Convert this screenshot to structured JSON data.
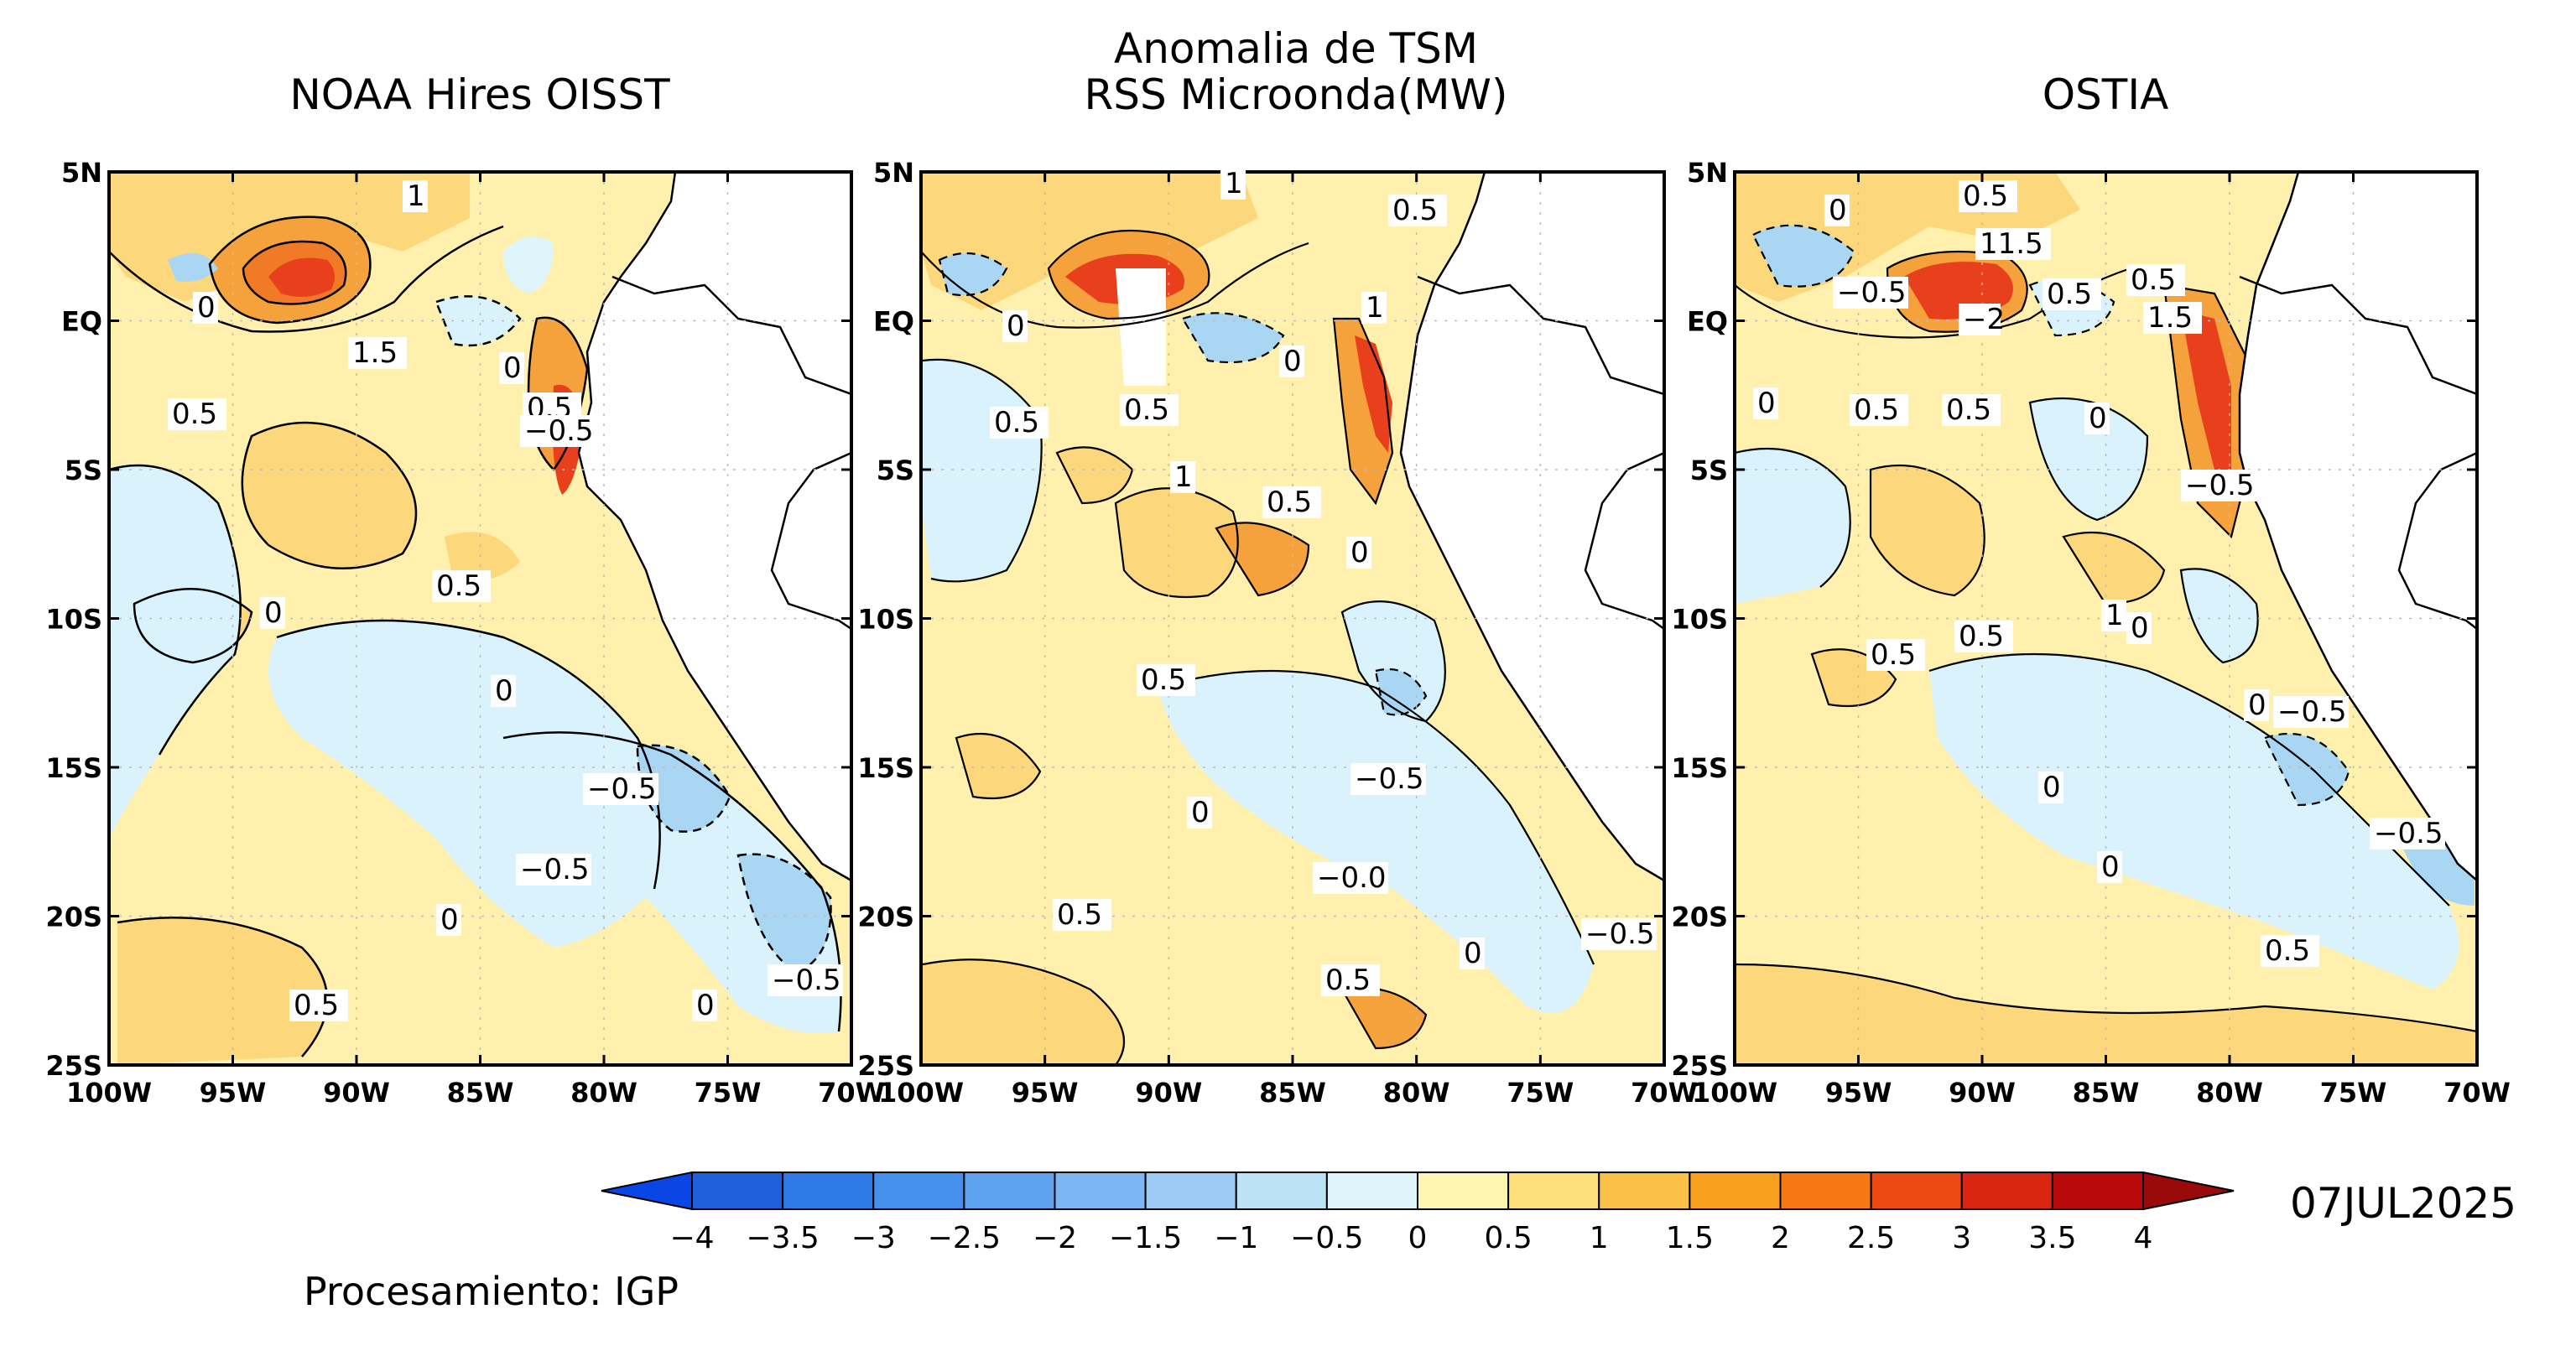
{
  "header": {
    "main_title_line1": "Anomalia de TSM",
    "main_title_line2": "RSS Microonda(MW)"
  },
  "panels": [
    {
      "id": "noaa",
      "title": "NOAA Hires OISST",
      "contour_labels": [
        "1",
        "0",
        "1.5",
        "0.5",
        "0",
        "0.5",
        "−0.5",
        "0.5",
        "0",
        "0",
        "−0.5",
        "−0.5",
        "0",
        "0.5",
        "0",
        "−0.5"
      ]
    },
    {
      "id": "rss",
      "title": "",
      "contour_labels": [
        "1",
        "0.5",
        "0",
        "0",
        "1",
        "0.5",
        "0.5",
        "1",
        "0.5",
        "0",
        "0.5",
        "0",
        "−0.5",
        "−0.0",
        "0.5",
        "0.5",
        "0",
        "−0.5"
      ]
    },
    {
      "id": "ostia",
      "title": "OSTIA",
      "contour_labels": [
        "0.5",
        "0",
        "11.5",
        "−0.5",
        "0.5",
        "0.5",
        "1.5",
        "−2",
        "0",
        "0.5",
        "0.5",
        "0",
        "−0.5",
        "0.5",
        "1",
        "0",
        "0.5",
        "−0.5",
        "0",
        "−0.5",
        "0",
        "0",
        "0.5"
      ]
    }
  ],
  "axes": {
    "lat_ticks": [
      "5N",
      "EQ",
      "5S",
      "10S",
      "15S",
      "20S",
      "25S"
    ],
    "lon_ticks_left_panel": [
      "100W",
      "95W",
      "90W",
      "85W",
      "80W",
      "75W",
      "70W"
    ],
    "lon_ticks": [
      "100W",
      "95W",
      "90W",
      "85W",
      "80W",
      "75W",
      "70W"
    ]
  },
  "colorbar": {
    "labels": [
      "−4",
      "−3.5",
      "−3",
      "−2.5",
      "−2",
      "−1.5",
      "−1",
      "−0.5",
      "0",
      "0.5",
      "1",
      "1.5",
      "2",
      "2.5",
      "3",
      "3.5",
      "4"
    ],
    "colors": [
      "#1e5fdc",
      "#2e7ae6",
      "#4590ec",
      "#5fa3f0",
      "#7cb6f3",
      "#9dcbf5",
      "#bce2f6",
      "#ddf5fb",
      "#fff5b0",
      "#fde07a",
      "#fbc048",
      "#f9a01e",
      "#f57812",
      "#ec4a12",
      "#d82612",
      "#b80a0a"
    ],
    "under_color": "#0a46e6",
    "over_color": "#9a0a0a"
  },
  "date": "07JUL2025",
  "credit": "Procesamiento: IGP",
  "colors": {
    "positive_light": "#fff1ad",
    "positive_mid": "#fcd77c",
    "positive_strong": "#f6a23c",
    "positive_hot": "#e8401c",
    "negative_light": "#d9f2fb",
    "negative_mid": "#a8d6f3",
    "land": "#ffffff"
  }
}
